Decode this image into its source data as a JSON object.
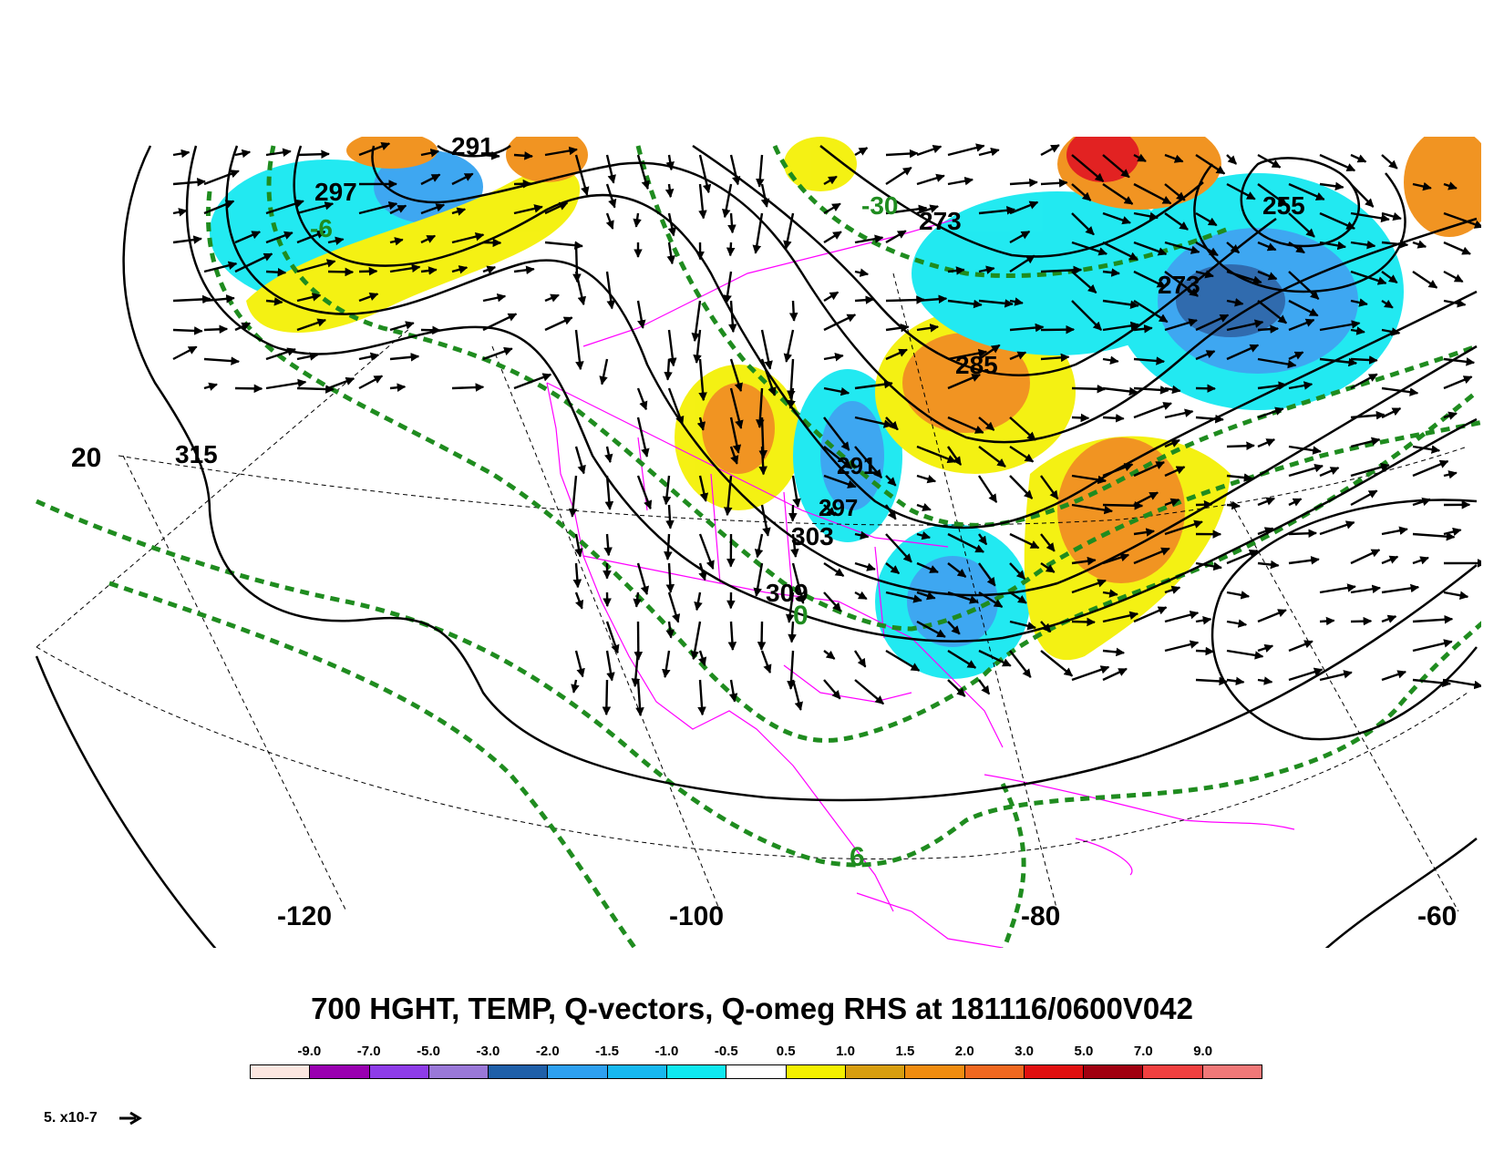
{
  "title": "700 HGHT, TEMP, Q-vectors, Q-omeg RHS at 181116/0600V042",
  "colors": {
    "height_contour": "#000000",
    "temp_contour": "#1f8c1f",
    "coastline": "#ff00ff",
    "grid": "#000000"
  },
  "map_labels": {
    "height": [
      "291",
      "297",
      "315",
      "303",
      "309",
      "297",
      "291",
      "273",
      "273",
      "255",
      "285"
    ],
    "temperature": [
      "-6",
      "0",
      "6",
      "-30"
    ],
    "latitude": [
      "20"
    ],
    "longitude": [
      "-120",
      "-100",
      "-80",
      "-60"
    ]
  },
  "colorbar": {
    "colors": [
      "#fbe6e0",
      "#9900b0",
      "#8e3ce8",
      "#9a78d8",
      "#1f5fa8",
      "#2ea0f0",
      "#17b8f0",
      "#10e8f0",
      "#ffffff",
      "#f4f000",
      "#d89e10",
      "#f08c10",
      "#f06820",
      "#e01010",
      "#a00010",
      "#f04040",
      "#f07878"
    ],
    "labels": [
      "-9.0",
      "-7.0",
      "-5.0",
      "-3.0",
      "-2.0",
      "-1.5",
      "-1.0",
      "-0.5",
      "0.5",
      "1.0",
      "1.5",
      "2.0",
      "3.0",
      "5.0",
      "7.0",
      "9.0"
    ]
  },
  "reference_vector": {
    "label": "5. x10-7",
    "icon": "arrow-right-icon"
  }
}
